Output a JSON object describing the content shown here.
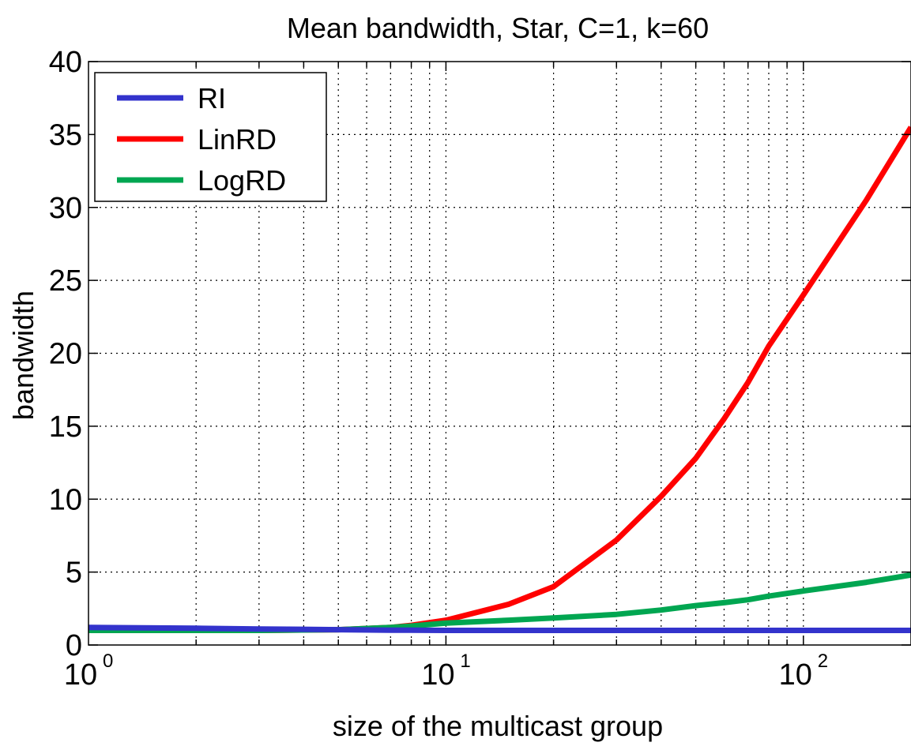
{
  "chart_data": {
    "type": "line",
    "title": "Mean bandwidth, Star, C=1, k=60",
    "xlabel": "size of the multicast group",
    "ylabel": "bandwidth",
    "xscale": "log",
    "xlim": [
      1,
      200
    ],
    "ylim": [
      0,
      40
    ],
    "grid": true,
    "legend_position": "top-left",
    "x_ticks": [
      {
        "base": "10",
        "exp": "0",
        "value": 1
      },
      {
        "base": "10",
        "exp": "1",
        "value": 10
      },
      {
        "base": "10",
        "exp": "2",
        "value": 100
      }
    ],
    "y_ticks": [
      {
        "label": "0",
        "value": 0
      },
      {
        "label": "5",
        "value": 5
      },
      {
        "label": "10",
        "value": 10
      },
      {
        "label": "15",
        "value": 15
      },
      {
        "label": "20",
        "value": 20
      },
      {
        "label": "25",
        "value": 25
      },
      {
        "label": "30",
        "value": 30
      },
      {
        "label": "35",
        "value": 35
      },
      {
        "label": "40",
        "value": 40
      }
    ],
    "x": [
      1,
      2,
      3,
      5,
      7,
      8,
      10,
      15,
      20,
      30,
      40,
      50,
      60,
      70,
      80,
      100,
      150,
      200
    ],
    "series": [
      {
        "name": "RI",
        "color": "#3333cc",
        "values": [
          1.2,
          1.15,
          1.1,
          1.05,
          1.02,
          1.01,
          1.0,
          1.0,
          1.0,
          1.0,
          1.0,
          1.0,
          1.0,
          1.0,
          1.0,
          1.0,
          1.0,
          1.0
        ]
      },
      {
        "name": "LinRD",
        "color": "#ff0000",
        "values": [
          1.0,
          1.0,
          1.0,
          1.05,
          1.2,
          1.35,
          1.7,
          2.8,
          4.0,
          7.2,
          10.2,
          12.8,
          15.5,
          18.0,
          20.5,
          24.0,
          30.5,
          35.5
        ]
      },
      {
        "name": "LogRD",
        "color": "#00a651",
        "values": [
          1.0,
          1.0,
          1.0,
          1.05,
          1.2,
          1.3,
          1.5,
          1.7,
          1.85,
          2.1,
          2.4,
          2.7,
          2.9,
          3.1,
          3.35,
          3.7,
          4.3,
          4.8
        ]
      }
    ]
  }
}
